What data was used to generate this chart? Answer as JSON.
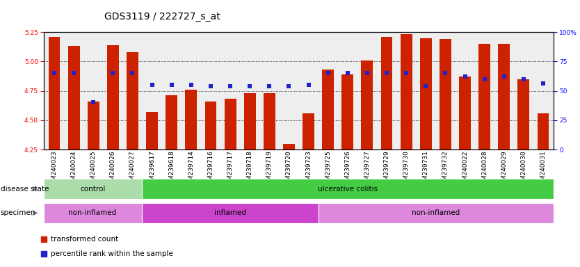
{
  "title": "GDS3119 / 222727_s_at",
  "samples": [
    "GSM240023",
    "GSM240024",
    "GSM240025",
    "GSM240026",
    "GSM240027",
    "GSM239617",
    "GSM239618",
    "GSM239714",
    "GSM239716",
    "GSM239717",
    "GSM239718",
    "GSM239719",
    "GSM239720",
    "GSM239723",
    "GSM239725",
    "GSM239726",
    "GSM239727",
    "GSM239729",
    "GSM239730",
    "GSM239731",
    "GSM239732",
    "GSM240022",
    "GSM240028",
    "GSM240029",
    "GSM240030",
    "GSM240031"
  ],
  "transformed_count": [
    5.21,
    5.13,
    4.66,
    5.14,
    5.08,
    4.57,
    4.71,
    4.76,
    4.66,
    4.68,
    4.73,
    4.73,
    4.3,
    4.56,
    4.93,
    4.89,
    5.01,
    5.21,
    5.23,
    5.2,
    5.19,
    4.87,
    5.15,
    5.15,
    4.85,
    4.56
  ],
  "percentile_rank": [
    65,
    65,
    40,
    65,
    65,
    55,
    55,
    55,
    54,
    54,
    54,
    54,
    54,
    55,
    65,
    65,
    65,
    65,
    65,
    54,
    65,
    62,
    60,
    62,
    60,
    56
  ],
  "ylim_left": [
    4.25,
    5.25
  ],
  "ylim_right": [
    0,
    100
  ],
  "yticks_left": [
    4.25,
    4.5,
    4.75,
    5.0,
    5.25
  ],
  "yticks_right": [
    0,
    25,
    50,
    75,
    100
  ],
  "bar_color": "#cc2200",
  "dot_color": "#2222cc",
  "disease_state_groups": [
    {
      "label": "control",
      "start": 0,
      "end": 4,
      "color": "#aaddaa"
    },
    {
      "label": "ulcerative colitis",
      "start": 5,
      "end": 25,
      "color": "#44cc44"
    }
  ],
  "specimen_groups": [
    {
      "label": "non-inflamed",
      "start": 0,
      "end": 4,
      "color": "#dd88dd"
    },
    {
      "label": "inflamed",
      "start": 5,
      "end": 13,
      "color": "#cc44cc"
    },
    {
      "label": "non-inflamed",
      "start": 14,
      "end": 25,
      "color": "#dd88dd"
    }
  ],
  "plot_bg": "#eeeeee",
  "title_fontsize": 10,
  "tick_fontsize": 6.5,
  "label_fontsize": 8,
  "annot_fontsize": 7.5
}
